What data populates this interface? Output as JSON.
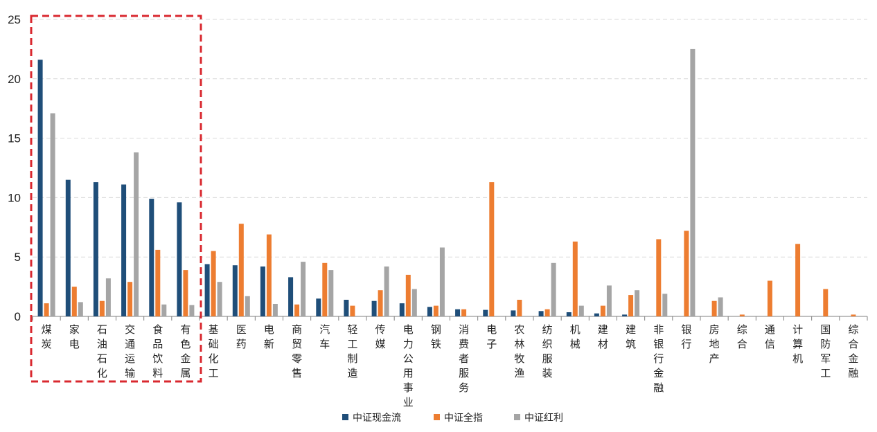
{
  "chart_data": {
    "type": "bar",
    "ylim": [
      0,
      25
    ],
    "yticks": [
      0,
      5,
      10,
      15,
      20,
      25
    ],
    "grid": true,
    "legend_position": "bottom",
    "categories": [
      "煤炭",
      "家电",
      "石油石化",
      "交通运输",
      "食品饮料",
      "有色金属",
      "基础化工",
      "医药",
      "电新",
      "商贸零售",
      "汽车",
      "轻工制造",
      "传媒",
      "电力公用事业",
      "钢铁",
      "消费者服务",
      "电子",
      "农林牧渔",
      "纺织服装",
      "机械",
      "建材",
      "建筑",
      "非银行金融",
      "银行",
      "房地产",
      "综合",
      "通信",
      "计算机",
      "国防军工",
      "综合金融"
    ],
    "series": [
      {
        "name": "中证现金流",
        "color": "#1f4e79",
        "values": [
          21.6,
          11.5,
          11.3,
          11.1,
          9.9,
          9.6,
          4.4,
          4.3,
          4.2,
          3.3,
          1.5,
          1.4,
          1.3,
          1.1,
          0.8,
          0.6,
          0.55,
          0.5,
          0.45,
          0.35,
          0.25,
          0.15,
          0,
          0,
          0,
          0,
          0,
          0,
          0,
          0
        ]
      },
      {
        "name": "中证全指",
        "color": "#ed7d31",
        "values": [
          1.1,
          2.5,
          1.3,
          2.9,
          5.6,
          3.9,
          5.5,
          7.8,
          6.9,
          1.0,
          4.5,
          0.9,
          2.2,
          3.5,
          0.9,
          0.6,
          11.3,
          1.4,
          0.6,
          6.3,
          0.9,
          1.8,
          6.5,
          7.2,
          1.3,
          0.15,
          3.0,
          6.1,
          2.3,
          0.15
        ]
      },
      {
        "name": "中证红利",
        "color": "#a5a5a5",
        "values": [
          17.1,
          1.2,
          3.2,
          13.8,
          1.0,
          0.95,
          2.9,
          1.7,
          1.05,
          4.6,
          3.9,
          0,
          4.2,
          2.3,
          5.8,
          0,
          0,
          0,
          4.5,
          0.9,
          2.6,
          2.2,
          1.9,
          22.5,
          1.6,
          0,
          0,
          0,
          0,
          0
        ]
      }
    ],
    "highlight_categories": [
      "煤炭",
      "家电",
      "石油石化",
      "交通运输",
      "食品饮料",
      "有色金属"
    ]
  }
}
